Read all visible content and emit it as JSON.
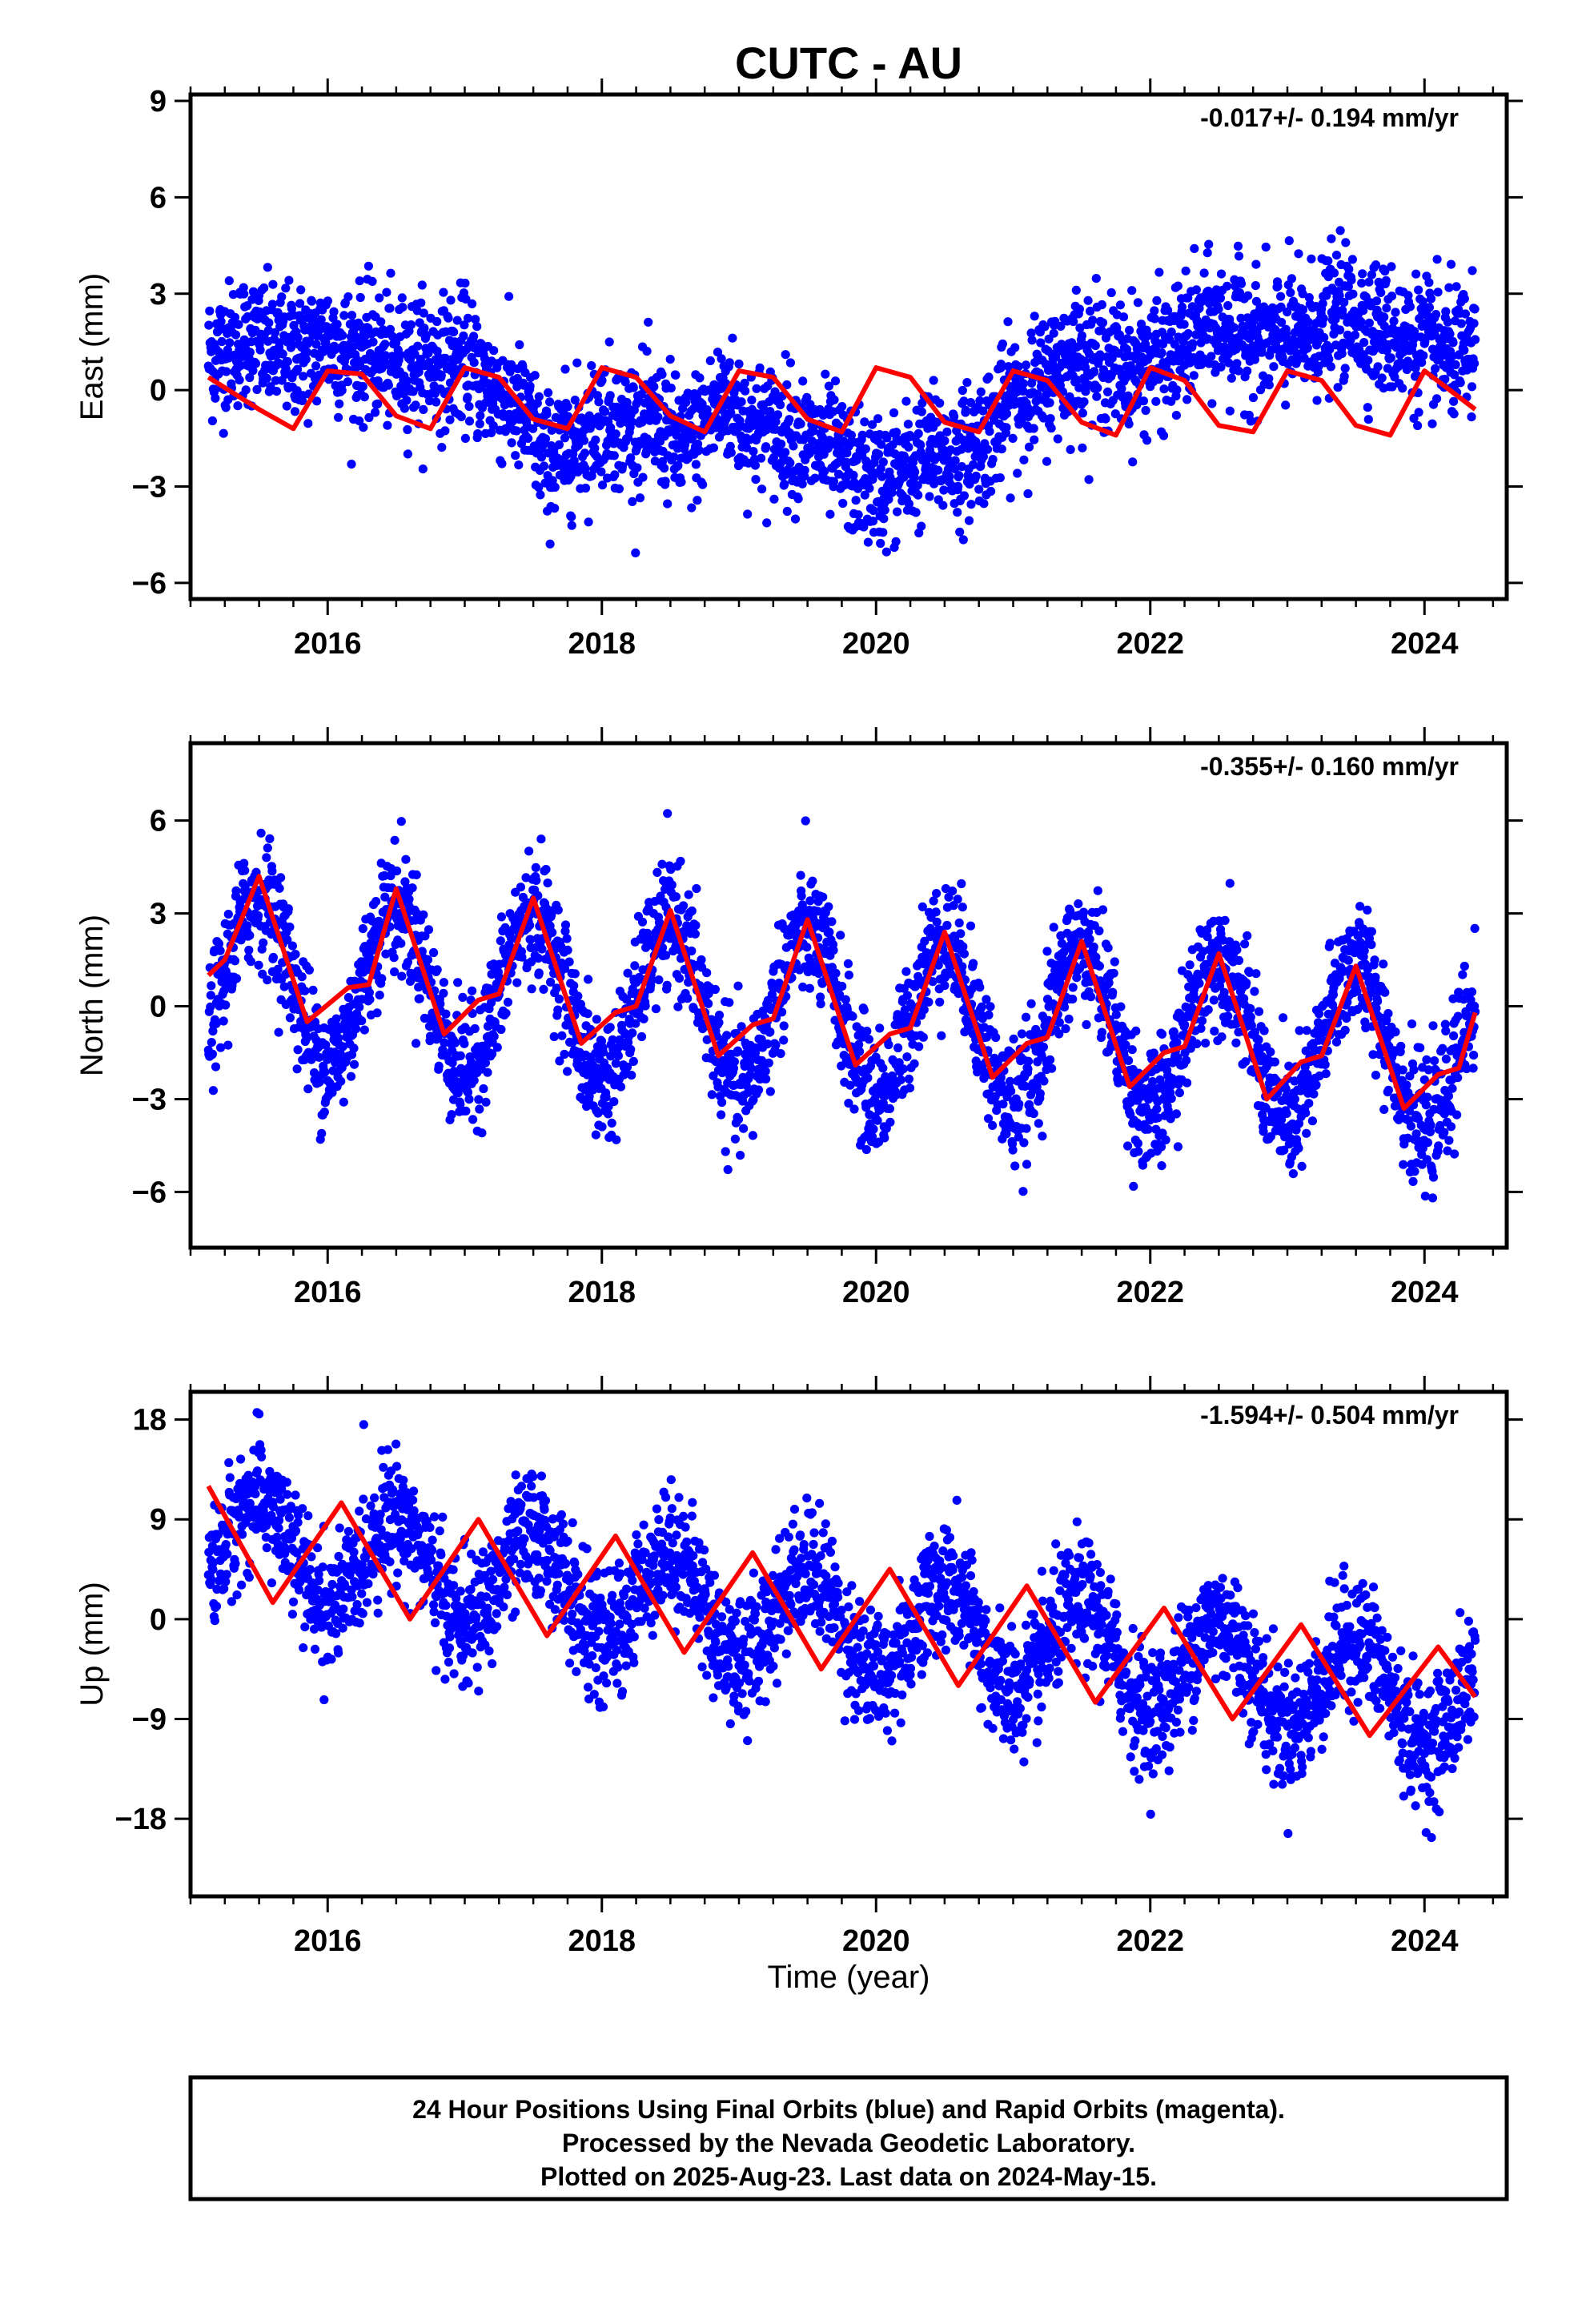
{
  "title": "CUTC - AU",
  "xlabel": "Time (year)",
  "footer": {
    "line1": "24 Hour Positions Using Final Orbits (blue) and Rapid Orbits (magenta).",
    "line2": "Processed by the Nevada Geodetic Laboratory.",
    "line3": "Plotted on 2025-Aug-23. Last data on 2024-May-15."
  },
  "colors": {
    "final_orbits": "#0000ff",
    "model_fit": "#ff0000",
    "frame": "#000000"
  },
  "chart_data": [
    {
      "type": "scatter",
      "ylabel": "East (mm)",
      "rate_label": "-0.017+/- 0.194 mm/yr",
      "xlim": [
        2015.0,
        2024.6
      ],
      "ylim": [
        -6.5,
        9.2
      ],
      "x_ticks": [
        2016,
        2018,
        2020,
        2022,
        2024
      ],
      "x_tick_labels": [
        "2016",
        "2018",
        "2020",
        "2022",
        "2024"
      ],
      "y_ticks": [
        -6,
        -3,
        0,
        3,
        6,
        9
      ],
      "y_tick_labels": [
        "−6",
        "−3",
        "0",
        "3",
        "6",
        "9"
      ],
      "points_series": {
        "name": "",
        "x_start": 2015.13,
        "x_end": 2024.37,
        "trend": [
          [
            2015.1,
            1.6
          ],
          [
            2015.6,
            0.6
          ],
          [
            2016.0,
            2.3
          ],
          [
            2016.5,
            0.0
          ],
          [
            2017.0,
            1.8
          ],
          [
            2017.6,
            -2.8
          ],
          [
            2018.0,
            0.0
          ],
          [
            2018.6,
            -2.5
          ],
          [
            2018.9,
            0.4
          ],
          [
            2019.5,
            -2.4
          ],
          [
            2020.0,
            -2.1
          ],
          [
            2020.6,
            -2.8
          ],
          [
            2021.0,
            0.5
          ],
          [
            2021.6,
            0.3
          ],
          [
            2022.0,
            1.6
          ],
          [
            2022.6,
            1.2
          ],
          [
            2023.0,
            2.4
          ],
          [
            2023.6,
            1.5
          ],
          [
            2024.0,
            2.2
          ],
          [
            2024.37,
            0.6
          ]
        ],
        "seasonal_amplitude": 0.7,
        "scatter_sd": 1.0
      },
      "model_series": {
        "name": "",
        "x": [
          2015.13,
          2015.5,
          2015.75,
          2016.0,
          2016.25,
          2016.5,
          2016.75,
          2017.0,
          2017.25,
          2017.5,
          2017.75,
          2018.0,
          2018.25,
          2018.5,
          2018.75,
          2019.0,
          2019.25,
          2019.5,
          2019.75,
          2020.0,
          2020.25,
          2020.5,
          2020.75,
          2021.0,
          2021.25,
          2021.5,
          2021.75,
          2022.0,
          2022.25,
          2022.5,
          2022.75,
          2023.0,
          2023.25,
          2023.5,
          2023.75,
          2024.0,
          2024.37
        ],
        "y": [
          0.4,
          -0.6,
          -1.2,
          0.6,
          0.5,
          -0.8,
          -1.2,
          0.7,
          0.4,
          -0.9,
          -1.2,
          0.7,
          0.4,
          -0.8,
          -1.3,
          0.6,
          0.4,
          -0.9,
          -1.3,
          0.7,
          0.4,
          -1.0,
          -1.3,
          0.6,
          0.3,
          -1.0,
          -1.4,
          0.7,
          0.3,
          -1.1,
          -1.3,
          0.6,
          0.3,
          -1.1,
          -1.4,
          0.6,
          -0.6
        ]
      }
    },
    {
      "type": "scatter",
      "ylabel": "North (mm)",
      "rate_label": "-0.355+/- 0.160 mm/yr",
      "xlim": [
        2015.0,
        2024.6
      ],
      "ylim": [
        -7.8,
        8.5
      ],
      "x_ticks": [
        2016,
        2018,
        2020,
        2022,
        2024
      ],
      "x_tick_labels": [
        "2016",
        "2018",
        "2020",
        "2022",
        "2024"
      ],
      "y_ticks": [
        -6,
        -3,
        0,
        3,
        6
      ],
      "y_tick_labels": [
        "−6",
        "−3",
        "0",
        "3",
        "6"
      ],
      "points_series": {
        "name": "",
        "x_start": 2015.13,
        "x_end": 2024.37,
        "trend": [
          [
            2015.1,
            1.0
          ],
          [
            2024.37,
            -1.5
          ]
        ],
        "seasonal_amplitude": 2.6,
        "scatter_sd": 1.0
      },
      "model_series": {
        "name": "",
        "x": [
          2015.13,
          2015.25,
          2015.5,
          2015.85,
          2016.15,
          2016.3,
          2016.5,
          2016.85,
          2017.1,
          2017.25,
          2017.5,
          2017.85,
          2018.1,
          2018.25,
          2018.5,
          2018.85,
          2019.1,
          2019.25,
          2019.5,
          2019.85,
          2020.1,
          2020.25,
          2020.5,
          2020.85,
          2021.1,
          2021.25,
          2021.5,
          2021.85,
          2022.1,
          2022.25,
          2022.5,
          2022.85,
          2023.1,
          2023.25,
          2023.5,
          2023.85,
          2024.1,
          2024.25,
          2024.37
        ],
        "y": [
          1.0,
          1.5,
          4.2,
          -0.5,
          0.6,
          0.7,
          3.8,
          -0.9,
          0.2,
          0.4,
          3.5,
          -1.2,
          -0.2,
          0.0,
          3.1,
          -1.6,
          -0.6,
          -0.4,
          2.8,
          -1.9,
          -0.9,
          -0.7,
          2.4,
          -2.3,
          -1.2,
          -1.0,
          2.1,
          -2.6,
          -1.5,
          -1.3,
          1.7,
          -3.0,
          -1.8,
          -1.6,
          1.3,
          -3.3,
          -2.2,
          -2.0,
          -0.2
        ]
      }
    },
    {
      "type": "scatter",
      "ylabel": "Up (mm)",
      "rate_label": "-1.594+/- 0.504 mm/yr",
      "xlim": [
        2015.0,
        2024.6
      ],
      "ylim": [
        -25.0,
        20.5
      ],
      "x_ticks": [
        2016,
        2018,
        2020,
        2022,
        2024
      ],
      "x_tick_labels": [
        "2016",
        "2018",
        "2020",
        "2022",
        "2024"
      ],
      "y_ticks": [
        -18,
        -9,
        0,
        9,
        18
      ],
      "y_tick_labels": [
        "−18",
        "−9",
        "0",
        "9",
        "18"
      ],
      "points_series": {
        "name": "",
        "x_start": 2015.13,
        "x_end": 2024.37,
        "trend": [
          [
            2015.1,
            7.0
          ],
          [
            2024.37,
            -7.5
          ]
        ],
        "seasonal_amplitude": 4.5,
        "scatter_sd": 2.8
      },
      "model_series": {
        "name": "",
        "x": [
          2015.13,
          2015.6,
          2016.1,
          2016.6,
          2017.1,
          2017.6,
          2018.1,
          2018.6,
          2019.1,
          2019.6,
          2020.1,
          2020.6,
          2021.1,
          2021.6,
          2022.1,
          2022.6,
          2023.1,
          2023.6,
          2024.1,
          2024.37
        ],
        "y": [
          12.0,
          1.5,
          10.5,
          0.0,
          9.0,
          -1.5,
          7.5,
          -3.0,
          6.0,
          -4.5,
          4.5,
          -6.0,
          3.0,
          -7.5,
          1.0,
          -9.0,
          -0.5,
          -10.5,
          -2.5,
          -7.0
        ]
      }
    }
  ]
}
